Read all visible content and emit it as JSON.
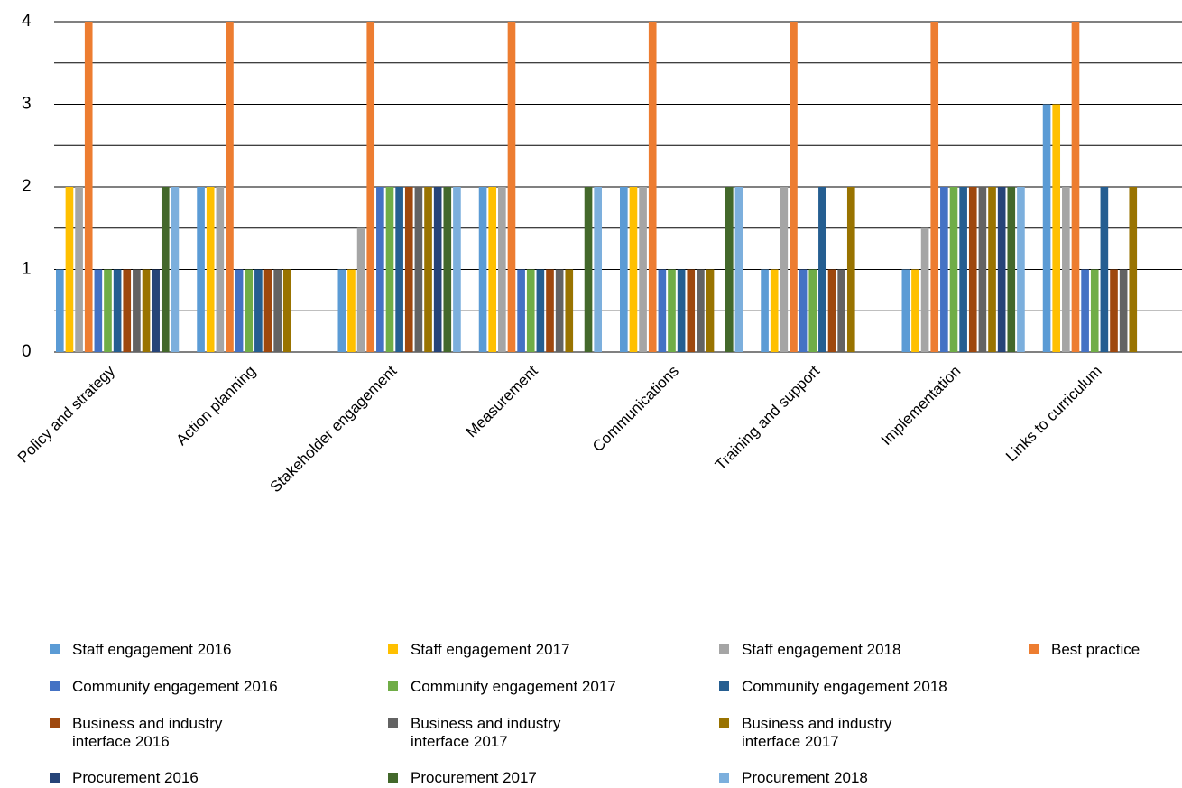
{
  "chart_data": {
    "type": "bar",
    "categories": [
      "Policy and strategy",
      "Action planning",
      "Stakeholder engagement",
      "Measurement",
      "Communications",
      "Training and support",
      "Implementation",
      "Links to curriculum"
    ],
    "series": [
      {
        "name": "Staff engagement 2016",
        "color": "#5b9bd5",
        "values": [
          1,
          2,
          1,
          2,
          2,
          1,
          1,
          3
        ]
      },
      {
        "name": "Staff engagement 2017",
        "color": "#ffc000",
        "values": [
          2,
          2,
          1,
          2,
          2,
          1,
          1,
          3
        ]
      },
      {
        "name": "Staff engagement 2018",
        "color": "#a5a5a5",
        "values": [
          2,
          2,
          1.5,
          2,
          2,
          2,
          1.5,
          2
        ]
      },
      {
        "name": "Best practice",
        "color": "#ed7d31",
        "values": [
          4,
          4,
          4,
          4,
          4,
          4,
          4,
          4
        ]
      },
      {
        "name": "Community engagement 2016",
        "color": "#4472c4",
        "values": [
          1,
          1,
          2,
          1,
          1,
          1,
          2,
          1
        ]
      },
      {
        "name": "Community engagement 2017",
        "color": "#70ad47",
        "values": [
          1,
          1,
          2,
          1,
          1,
          1,
          2,
          1
        ]
      },
      {
        "name": "Community engagement  2018",
        "color": "#255e91",
        "values": [
          1,
          1,
          2,
          1,
          1,
          2,
          2,
          2
        ]
      },
      {
        "name": "Business and industry\ninterface 2016",
        "color": "#9e480e",
        "values": [
          1,
          1,
          2,
          1,
          1,
          1,
          2,
          1
        ]
      },
      {
        "name": "Business and industry\ninterface 2017",
        "color": "#636363",
        "values": [
          1,
          1,
          2,
          1,
          1,
          1,
          2,
          1
        ]
      },
      {
        "name": "Business and industry\ninterface 2017",
        "color": "#997300",
        "values": [
          1,
          1,
          2,
          1,
          1,
          2,
          2,
          2
        ]
      },
      {
        "name": "Procurement 2016",
        "color": "#264478",
        "values": [
          1,
          0,
          2,
          0,
          0,
          0,
          2,
          0
        ]
      },
      {
        "name": "Procurement 2017",
        "color": "#43682b",
        "values": [
          2,
          0,
          2,
          2,
          2,
          0,
          2,
          0
        ]
      },
      {
        "name": "Procurement 2018",
        "color": "#7cafdd",
        "values": [
          2,
          0,
          2,
          2,
          2,
          0,
          2,
          0
        ]
      }
    ],
    "ylim": [
      0,
      4
    ],
    "yticks": [
      0,
      1,
      2,
      3,
      4
    ],
    "grid": true
  }
}
